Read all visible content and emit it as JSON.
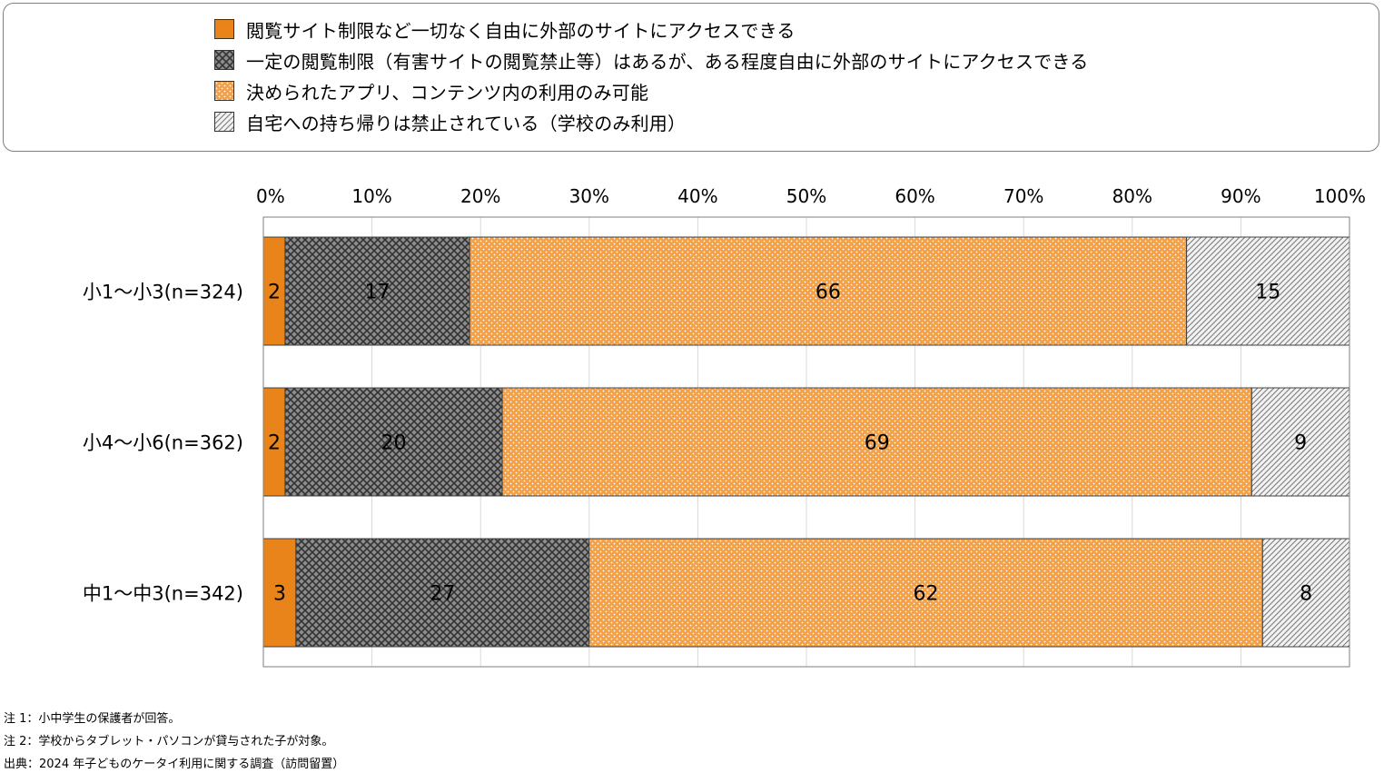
{
  "colors": {
    "solid": "#E8841A",
    "crosshatch_fg": "#333333",
    "crosshatch_bg": "#8C8C8C",
    "dots_fg": "#FFFFFF",
    "dots_bg": "#F0A14A",
    "diagonal_fg": "#777777",
    "diagonal_bg": "#F2F2F2",
    "grid": "#D9D9D9",
    "frame": "#7F7F7F"
  },
  "chart_data": {
    "type": "bar",
    "orientation": "horizontal",
    "stacked": "percent",
    "categories": [
      "小1～小3(n=324)",
      "小4～小6(n=362)",
      "中1～中3(n=342)"
    ],
    "series": [
      {
        "name": "閲覧サイト制限など一切なく自由に外部のサイトにアクセスできる",
        "pattern": "solid",
        "values": [
          2,
          2,
          3
        ]
      },
      {
        "name": "一定の閲覧制限（有害サイトの閲覧禁止等）はあるが、ある程度自由に外部のサイトにアクセスできる",
        "pattern": "crosshatch",
        "values": [
          17,
          20,
          27
        ]
      },
      {
        "name": "決められたアプリ、コンテンツ内の利用のみ可能",
        "pattern": "dots",
        "values": [
          66,
          69,
          62
        ]
      },
      {
        "name": "自宅への持ち帰りは禁止されている（学校のみ利用）",
        "pattern": "diagonal",
        "values": [
          15,
          9,
          8
        ]
      }
    ],
    "x_ticks": [
      "0%",
      "10%",
      "20%",
      "30%",
      "40%",
      "50%",
      "60%",
      "70%",
      "80%",
      "90%",
      "100%"
    ],
    "xlim": [
      0,
      100
    ],
    "axis_position": "top",
    "grid": true,
    "legend_position": "top",
    "data_labels": true
  },
  "notes": [
    "注 1：小中学生の保護者が回答。",
    "注 2：学校からタブレット・パソコンが貸与された子が対象。",
    "出典：2024 年子どものケータイ利用に関する調査（訪問留置）"
  ]
}
